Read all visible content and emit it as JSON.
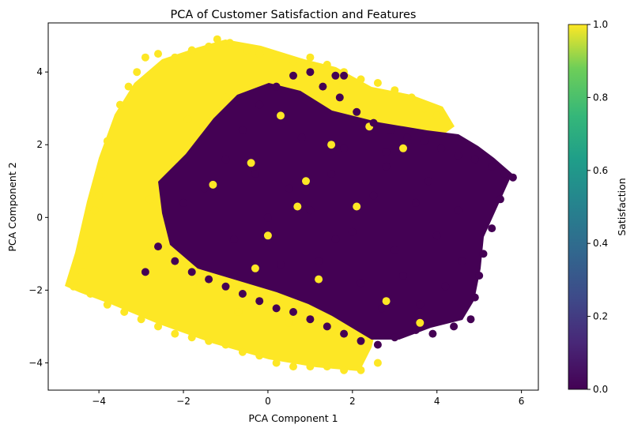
{
  "chart_data": {
    "type": "scatter",
    "title": "PCA of Customer Satisfaction and Features",
    "xlabel": "PCA Component 1",
    "ylabel": "PCA Component 2",
    "xlim": [
      -5.2,
      6.4
    ],
    "ylim": [
      -4.75,
      5.35
    ],
    "xticks": [
      -4,
      -2,
      0,
      2,
      4,
      6
    ],
    "xtick_labels": [
      "−4",
      "−2",
      "0",
      "2",
      "4",
      "6"
    ],
    "yticks": [
      -4,
      -2,
      0,
      2,
      4
    ],
    "ytick_labels": [
      "−4",
      "−2",
      "0",
      "2",
      "4"
    ],
    "grid": false,
    "colorbar": {
      "label": "Satisfaction",
      "colormap": "viridis",
      "range": [
        0.0,
        1.0
      ],
      "ticks": [
        0.0,
        0.2,
        0.4,
        0.6,
        0.8,
        1.0
      ],
      "tick_labels": [
        "0.0",
        "0.2",
        "0.4",
        "0.6",
        "0.8",
        "1.0"
      ]
    },
    "series": [
      {
        "satisfaction": 1.0,
        "color": "#fde725",
        "points": [
          [
            -4.6,
            -1.9
          ],
          [
            -4.4,
            -1.5
          ],
          [
            -4.3,
            -0.9
          ],
          [
            -4.1,
            0.2
          ],
          [
            -4.0,
            0.6
          ],
          [
            -3.9,
            1.2
          ],
          [
            -3.8,
            2.1
          ],
          [
            -3.6,
            2.5
          ],
          [
            -3.5,
            3.1
          ],
          [
            -3.3,
            3.6
          ],
          [
            -3.1,
            4.0
          ],
          [
            -2.9,
            4.4
          ],
          [
            -2.6,
            4.5
          ],
          [
            -2.2,
            4.4
          ],
          [
            -1.8,
            4.6
          ],
          [
            -1.4,
            4.7
          ],
          [
            -1.2,
            4.9
          ],
          [
            -0.9,
            4.8
          ],
          [
            -0.5,
            4.6
          ],
          [
            -0.2,
            4.5
          ],
          [
            0.2,
            4.4
          ],
          [
            0.6,
            4.3
          ],
          [
            1.0,
            4.4
          ],
          [
            1.4,
            4.2
          ],
          [
            1.8,
            4.0
          ],
          [
            2.2,
            3.8
          ],
          [
            2.6,
            3.7
          ],
          [
            3.0,
            3.5
          ],
          [
            3.4,
            3.3
          ],
          [
            3.7,
            3.0
          ],
          [
            4.0,
            2.8
          ],
          [
            -4.2,
            -2.1
          ],
          [
            -3.8,
            -2.4
          ],
          [
            -3.4,
            -2.6
          ],
          [
            -3.0,
            -2.8
          ],
          [
            -2.6,
            -3.0
          ],
          [
            -2.2,
            -3.2
          ],
          [
            -1.8,
            -3.3
          ],
          [
            -1.4,
            -3.4
          ],
          [
            -1.0,
            -3.5
          ],
          [
            -0.6,
            -3.7
          ],
          [
            -0.2,
            -3.8
          ],
          [
            0.2,
            -4.0
          ],
          [
            0.6,
            -4.1
          ],
          [
            1.0,
            -4.1
          ],
          [
            1.4,
            -4.1
          ],
          [
            1.8,
            -4.2
          ],
          [
            2.2,
            -4.2
          ],
          [
            2.6,
            -4.0
          ],
          [
            -2.8,
            0.5
          ],
          [
            -2.5,
            -0.8
          ],
          [
            -2.2,
            1.6
          ],
          [
            -1.9,
            2.7
          ],
          [
            -1.6,
            -1.8
          ],
          [
            -1.3,
            0.9
          ],
          [
            -1.0,
            3.3
          ],
          [
            -0.7,
            -2.6
          ],
          [
            -0.4,
            1.5
          ],
          [
            0.0,
            -0.5
          ],
          [
            0.3,
            2.8
          ],
          [
            0.5,
            -2.9
          ],
          [
            0.9,
            1.0
          ],
          [
            1.2,
            -1.7
          ],
          [
            1.5,
            2.0
          ],
          [
            1.8,
            -3.1
          ],
          [
            2.1,
            0.3
          ],
          [
            2.4,
            2.5
          ],
          [
            2.8,
            -2.3
          ],
          [
            3.2,
            1.9
          ],
          [
            3.6,
            -2.9
          ],
          [
            0.7,
            0.3
          ],
          [
            -0.3,
            -1.4
          ]
        ]
      },
      {
        "satisfaction": 0.0,
        "color": "#440154",
        "points": [
          [
            -2.0,
            0.4
          ],
          [
            -1.5,
            0.8
          ],
          [
            -1.0,
            1.6
          ],
          [
            -0.6,
            2.4
          ],
          [
            -0.2,
            3.1
          ],
          [
            0.2,
            3.6
          ],
          [
            0.6,
            3.9
          ],
          [
            1.0,
            4.0
          ],
          [
            1.3,
            3.6
          ],
          [
            1.7,
            3.3
          ],
          [
            2.1,
            2.9
          ],
          [
            2.5,
            2.6
          ],
          [
            2.9,
            2.4
          ],
          [
            3.3,
            2.2
          ],
          [
            3.7,
            2.1
          ],
          [
            4.1,
            1.9
          ],
          [
            4.5,
            1.7
          ],
          [
            4.9,
            1.6
          ],
          [
            5.3,
            1.4
          ],
          [
            5.6,
            1.2
          ],
          [
            5.8,
            1.1
          ],
          [
            5.5,
            0.5
          ],
          [
            5.3,
            -0.3
          ],
          [
            5.1,
            -1.0
          ],
          [
            5.0,
            -1.6
          ],
          [
            4.9,
            -2.2
          ],
          [
            4.8,
            -2.8
          ],
          [
            4.4,
            -3.0
          ],
          [
            3.9,
            -3.2
          ],
          [
            3.5,
            -3.1
          ],
          [
            3.0,
            -3.3
          ],
          [
            2.6,
            -3.5
          ],
          [
            2.2,
            -3.4
          ],
          [
            1.8,
            -3.2
          ],
          [
            1.4,
            -3.0
          ],
          [
            1.0,
            -2.8
          ],
          [
            0.6,
            -2.6
          ],
          [
            0.2,
            -2.5
          ],
          [
            -0.2,
            -2.3
          ],
          [
            -0.6,
            -2.1
          ],
          [
            -1.0,
            -1.9
          ],
          [
            -1.4,
            -1.7
          ],
          [
            -1.8,
            -1.5
          ],
          [
            -2.2,
            -1.2
          ],
          [
            -2.6,
            -0.8
          ],
          [
            -2.9,
            -1.5
          ],
          [
            0.0,
            0.0
          ],
          [
            0.5,
            0.8
          ],
          [
            1.0,
            0.2
          ],
          [
            1.5,
            1.2
          ],
          [
            2.0,
            -0.4
          ],
          [
            2.5,
            0.6
          ],
          [
            3.0,
            -0.9
          ],
          [
            3.5,
            0.4
          ],
          [
            4.0,
            -0.5
          ],
          [
            4.5,
            0.2
          ],
          [
            1.2,
            -1.2
          ],
          [
            2.2,
            -1.8
          ],
          [
            3.2,
            -1.6
          ],
          [
            4.2,
            -1.9
          ],
          [
            0.8,
            2.2
          ],
          [
            1.8,
            1.9
          ],
          [
            2.8,
            1.4
          ],
          [
            3.8,
            1.0
          ],
          [
            -0.8,
            -0.6
          ],
          [
            0.3,
            -1.3
          ],
          [
            1.6,
            -0.6
          ],
          [
            2.7,
            -2.5
          ],
          [
            3.6,
            -2.4
          ],
          [
            4.6,
            -1.2
          ],
          [
            1.6,
            3.9
          ],
          [
            1.8,
            3.9
          ],
          [
            2.8,
            1.8
          ],
          [
            -0.3,
            1.2
          ]
        ]
      }
    ]
  }
}
